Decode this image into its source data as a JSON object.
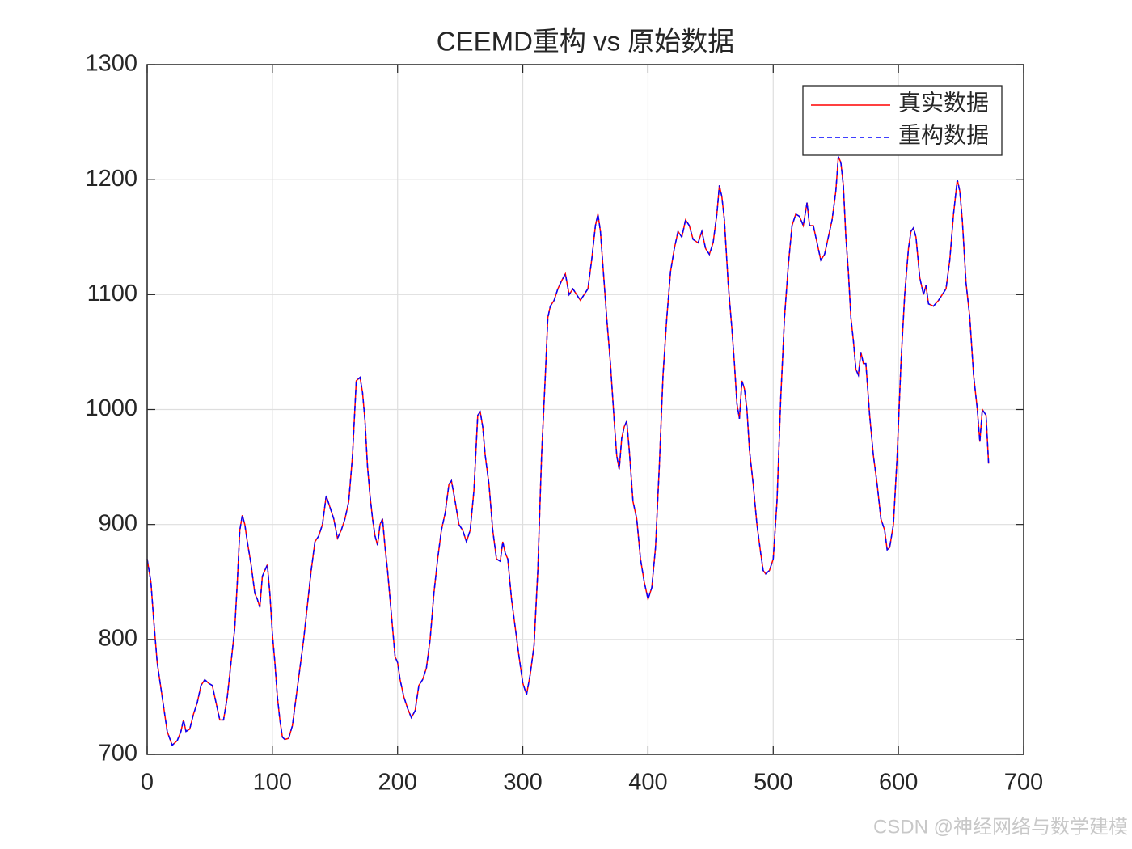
{
  "chart_data": {
    "type": "line",
    "title": "CEEMD重构 vs 原始数据",
    "watermark": "CSDN @神经网络与数学建模",
    "x": [
      0,
      3,
      5,
      8,
      12,
      16,
      20,
      24,
      27,
      29,
      31,
      34,
      37,
      40,
      43,
      46,
      49,
      52,
      55,
      58,
      61,
      64,
      67,
      70,
      72,
      74,
      76,
      78,
      80,
      83,
      86,
      88,
      90,
      92,
      94,
      96,
      98,
      100,
      102,
      104,
      106,
      108,
      110,
      113,
      116,
      119,
      122,
      125,
      128,
      131,
      134,
      137,
      140,
      143,
      146,
      149,
      152,
      155,
      158,
      161,
      164,
      167,
      170,
      172,
      174,
      176,
      178,
      180,
      182,
      184,
      186,
      188,
      190,
      192,
      194,
      196,
      198,
      200,
      202,
      205,
      208,
      211,
      214,
      217,
      220,
      223,
      226,
      229,
      232,
      235,
      238,
      241,
      243,
      246,
      249,
      252,
      255,
      258,
      261,
      264,
      266,
      268,
      270,
      273,
      276,
      279,
      282,
      284,
      286,
      288,
      291,
      294,
      297,
      300,
      303,
      306,
      309,
      312,
      315,
      318,
      320,
      322,
      325,
      328,
      331,
      334,
      337,
      340,
      343,
      346,
      349,
      352,
      355,
      358,
      360,
      362,
      364,
      367,
      370,
      373,
      375,
      377,
      379,
      381,
      383,
      385,
      388,
      391,
      394,
      397,
      400,
      403,
      406,
      409,
      412,
      415,
      418,
      421,
      424,
      427,
      430,
      433,
      436,
      440,
      443,
      446,
      449,
      452,
      455,
      457,
      459,
      461,
      464,
      467,
      469,
      471,
      473,
      475,
      477,
      479,
      481,
      484,
      487,
      490,
      492,
      494,
      497,
      500,
      503,
      506,
      509,
      512,
      515,
      518,
      521,
      524,
      527,
      529,
      532,
      535,
      538,
      541,
      544,
      547,
      550,
      552,
      554,
      556,
      558,
      560,
      562,
      564,
      566,
      568,
      570,
      572,
      574,
      577,
      580,
      583,
      586,
      589,
      591,
      593,
      596,
      599,
      602,
      605,
      608,
      610,
      612,
      614,
      617,
      620,
      622,
      624,
      628,
      632,
      635,
      638,
      641,
      644,
      647,
      649,
      651,
      654,
      657,
      660,
      663,
      665,
      667,
      670,
      672
    ],
    "series": [
      {
        "name": "真实数据",
        "color": "#ff0000",
        "linestyle": "solid",
        "values": [
          870,
          850,
          820,
          780,
          750,
          720,
          708,
          712,
          720,
          730,
          720,
          722,
          735,
          745,
          760,
          765,
          762,
          760,
          745,
          730,
          730,
          750,
          780,
          810,
          850,
          895,
          908,
          900,
          885,
          865,
          840,
          835,
          828,
          855,
          860,
          865,
          840,
          805,
          780,
          750,
          730,
          715,
          713,
          714,
          725,
          750,
          775,
          800,
          830,
          860,
          885,
          890,
          900,
          925,
          915,
          905,
          888,
          895,
          905,
          920,
          960,
          1025,
          1028,
          1015,
          990,
          950,
          925,
          905,
          890,
          882,
          900,
          905,
          880,
          860,
          835,
          810,
          785,
          780,
          765,
          750,
          740,
          732,
          738,
          760,
          765,
          775,
          800,
          840,
          870,
          895,
          910,
          935,
          938,
          920,
          900,
          895,
          885,
          895,
          930,
          995,
          998,
          985,
          960,
          935,
          895,
          870,
          868,
          885,
          875,
          870,
          835,
          810,
          785,
          762,
          752,
          770,
          795,
          860,
          960,
          1030,
          1080,
          1090,
          1095,
          1105,
          1112,
          1118,
          1100,
          1105,
          1100,
          1095,
          1100,
          1105,
          1130,
          1160,
          1170,
          1155,
          1125,
          1080,
          1040,
          990,
          960,
          948,
          975,
          985,
          990,
          965,
          920,
          905,
          870,
          850,
          835,
          845,
          880,
          950,
          1030,
          1080,
          1120,
          1140,
          1155,
          1150,
          1165,
          1160,
          1148,
          1145,
          1155,
          1140,
          1135,
          1145,
          1170,
          1195,
          1185,
          1165,
          1110,
          1070,
          1040,
          1005,
          992,
          1025,
          1018,
          1000,
          965,
          935,
          900,
          875,
          860,
          857,
          860,
          870,
          920,
          1010,
          1080,
          1125,
          1160,
          1170,
          1168,
          1160,
          1180,
          1160,
          1160,
          1145,
          1130,
          1135,
          1150,
          1165,
          1190,
          1220,
          1215,
          1195,
          1150,
          1120,
          1080,
          1060,
          1035,
          1030,
          1050,
          1040,
          1040,
          995,
          960,
          935,
          905,
          895,
          878,
          880,
          900,
          960,
          1040,
          1100,
          1140,
          1155,
          1158,
          1150,
          1115,
          1100,
          1108,
          1092,
          1090,
          1095,
          1100,
          1105,
          1130,
          1170,
          1200,
          1190,
          1165,
          1110,
          1080,
          1030,
          1000,
          972,
          1000,
          995,
          953
        ]
      },
      {
        "name": "重构数据",
        "color": "#0000ff",
        "linestyle": "dashed",
        "values": [
          870,
          850,
          820,
          780,
          750,
          720,
          708,
          712,
          720,
          730,
          720,
          722,
          735,
          745,
          760,
          765,
          762,
          760,
          745,
          730,
          730,
          750,
          780,
          810,
          850,
          895,
          908,
          900,
          885,
          865,
          840,
          835,
          828,
          855,
          860,
          865,
          840,
          805,
          780,
          750,
          730,
          715,
          713,
          714,
          725,
          750,
          775,
          800,
          830,
          860,
          885,
          890,
          900,
          925,
          915,
          905,
          888,
          895,
          905,
          920,
          960,
          1025,
          1028,
          1015,
          990,
          950,
          925,
          905,
          890,
          882,
          900,
          905,
          880,
          860,
          835,
          810,
          785,
          780,
          765,
          750,
          740,
          732,
          738,
          760,
          765,
          775,
          800,
          840,
          870,
          895,
          910,
          935,
          938,
          920,
          900,
          895,
          885,
          895,
          930,
          995,
          998,
          985,
          960,
          935,
          895,
          870,
          868,
          885,
          875,
          870,
          835,
          810,
          785,
          762,
          752,
          770,
          795,
          860,
          960,
          1030,
          1080,
          1090,
          1095,
          1105,
          1112,
          1118,
          1100,
          1105,
          1100,
          1095,
          1100,
          1105,
          1130,
          1160,
          1170,
          1155,
          1125,
          1080,
          1040,
          990,
          960,
          948,
          975,
          985,
          990,
          965,
          920,
          905,
          870,
          850,
          835,
          845,
          880,
          950,
          1030,
          1080,
          1120,
          1140,
          1155,
          1150,
          1165,
          1160,
          1148,
          1145,
          1155,
          1140,
          1135,
          1145,
          1170,
          1195,
          1185,
          1165,
          1110,
          1070,
          1040,
          1005,
          992,
          1025,
          1018,
          1000,
          965,
          935,
          900,
          875,
          860,
          857,
          860,
          870,
          920,
          1010,
          1080,
          1125,
          1160,
          1170,
          1168,
          1160,
          1180,
          1160,
          1160,
          1145,
          1130,
          1135,
          1150,
          1165,
          1190,
          1220,
          1215,
          1195,
          1150,
          1120,
          1080,
          1060,
          1035,
          1030,
          1050,
          1040,
          1040,
          995,
          960,
          935,
          905,
          895,
          878,
          880,
          900,
          960,
          1040,
          1100,
          1140,
          1155,
          1158,
          1150,
          1115,
          1100,
          1108,
          1092,
          1090,
          1095,
          1100,
          1105,
          1130,
          1170,
          1200,
          1190,
          1165,
          1110,
          1080,
          1030,
          1000,
          972,
          1000,
          995,
          953
        ]
      }
    ],
    "xlim": [
      0,
      700
    ],
    "xticks": [
      0,
      100,
      200,
      300,
      400,
      500,
      600,
      700
    ],
    "ylim": [
      700,
      1300
    ],
    "yticks": [
      700,
      800,
      900,
      1000,
      1100,
      1200,
      1300
    ],
    "grid": true,
    "legend": "upper right"
  }
}
